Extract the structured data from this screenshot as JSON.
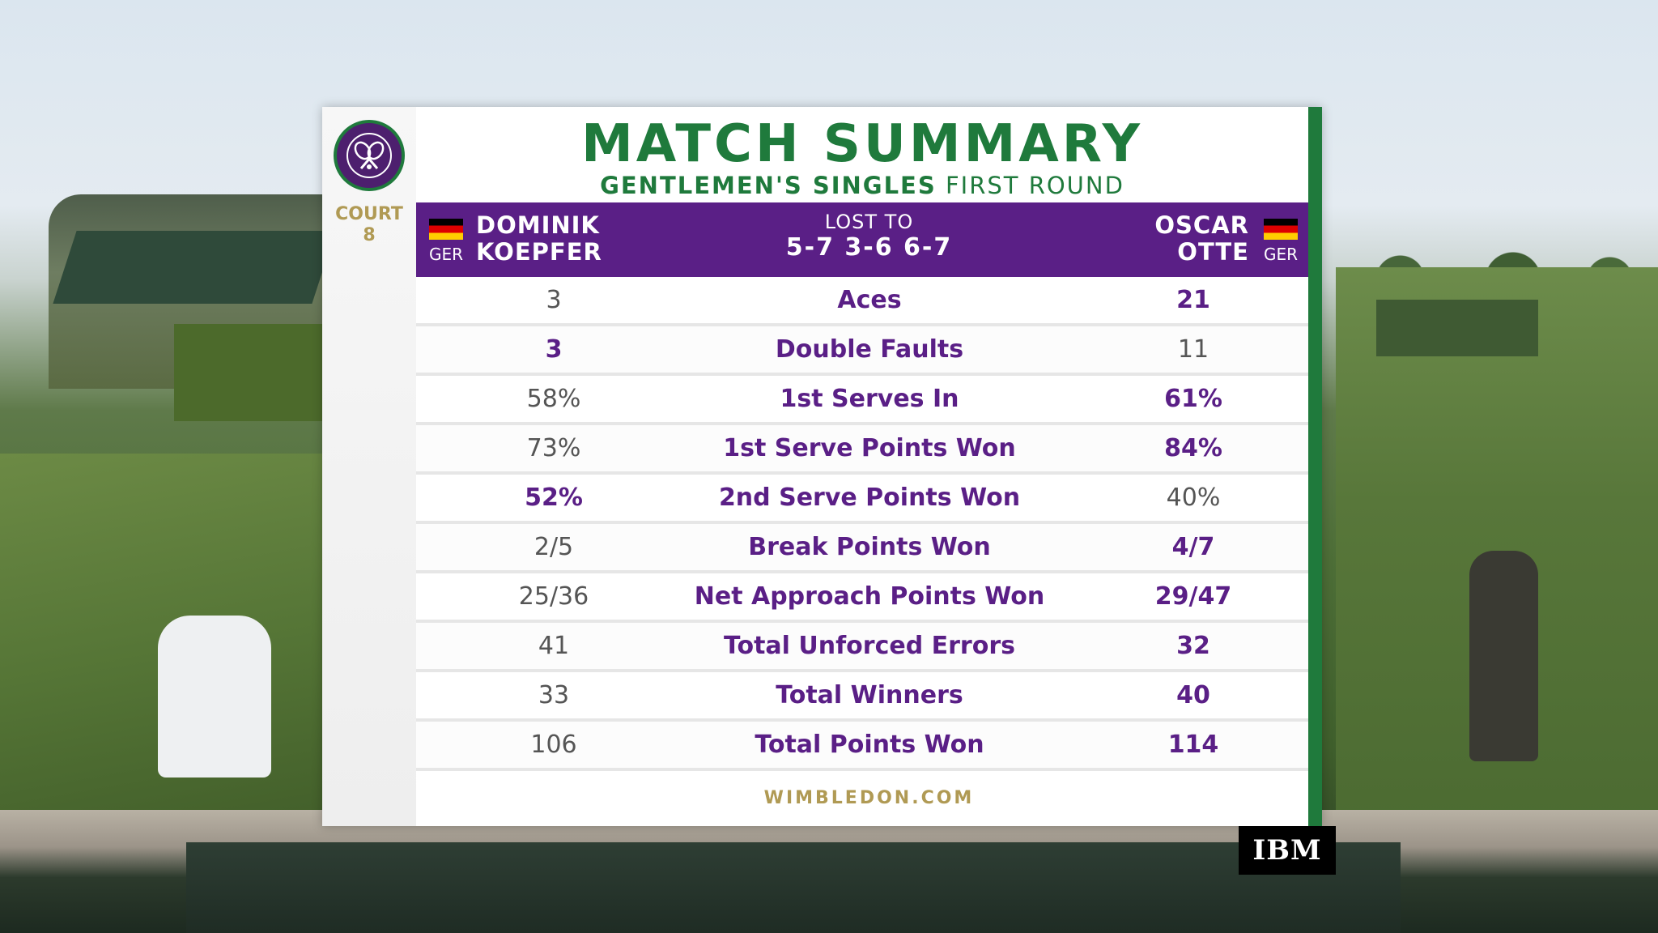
{
  "header": {
    "title": "MATCH SUMMARY",
    "subtitle_bold": "GENTLEMEN'S SINGLES",
    "subtitle_light": "FIRST ROUND"
  },
  "sidebar": {
    "court_line1": "COURT",
    "court_line2": "8"
  },
  "match": {
    "left_player": {
      "first_name": "DOMINIK",
      "last_name": "KOEPFER",
      "country": "GER",
      "flag_icon": "germany-flag-icon"
    },
    "result_label": "LOST TO",
    "score": "5-7 3-6 6-7",
    "right_player": {
      "first_name": "OSCAR",
      "last_name": "OTTE",
      "country": "GER",
      "flag_icon": "germany-flag-icon"
    }
  },
  "stats": [
    {
      "left": "3",
      "label": "Aces",
      "right": "21",
      "winner": "right"
    },
    {
      "left": "3",
      "label": "Double Faults",
      "right": "11",
      "winner": "left"
    },
    {
      "left": "58%",
      "label": "1st Serves In",
      "right": "61%",
      "winner": "right"
    },
    {
      "left": "73%",
      "label": "1st Serve Points Won",
      "right": "84%",
      "winner": "right"
    },
    {
      "left": "52%",
      "label": "2nd Serve Points Won",
      "right": "40%",
      "winner": "left"
    },
    {
      "left": "2/5",
      "label": "Break Points Won",
      "right": "4/7",
      "winner": "right"
    },
    {
      "left": "25/36",
      "label": "Net Approach Points Won",
      "right": "29/47",
      "winner": "right"
    },
    {
      "left": "41",
      "label": "Total Unforced Errors",
      "right": "32",
      "winner": "right"
    },
    {
      "left": "33",
      "label": "Total Winners",
      "right": "40",
      "winner": "right"
    },
    {
      "left": "106",
      "label": "Total Points Won",
      "right": "114",
      "winner": "right"
    }
  ],
  "footer": {
    "site": "WIMBLEDON.COM"
  },
  "sponsor": {
    "label": "IBM"
  },
  "colors": {
    "purple": "#5a1f86",
    "green": "#1f7a3c",
    "gold": "#b09a54"
  },
  "logo": {
    "icon": "wimbledon-crossed-rackets-icon"
  }
}
